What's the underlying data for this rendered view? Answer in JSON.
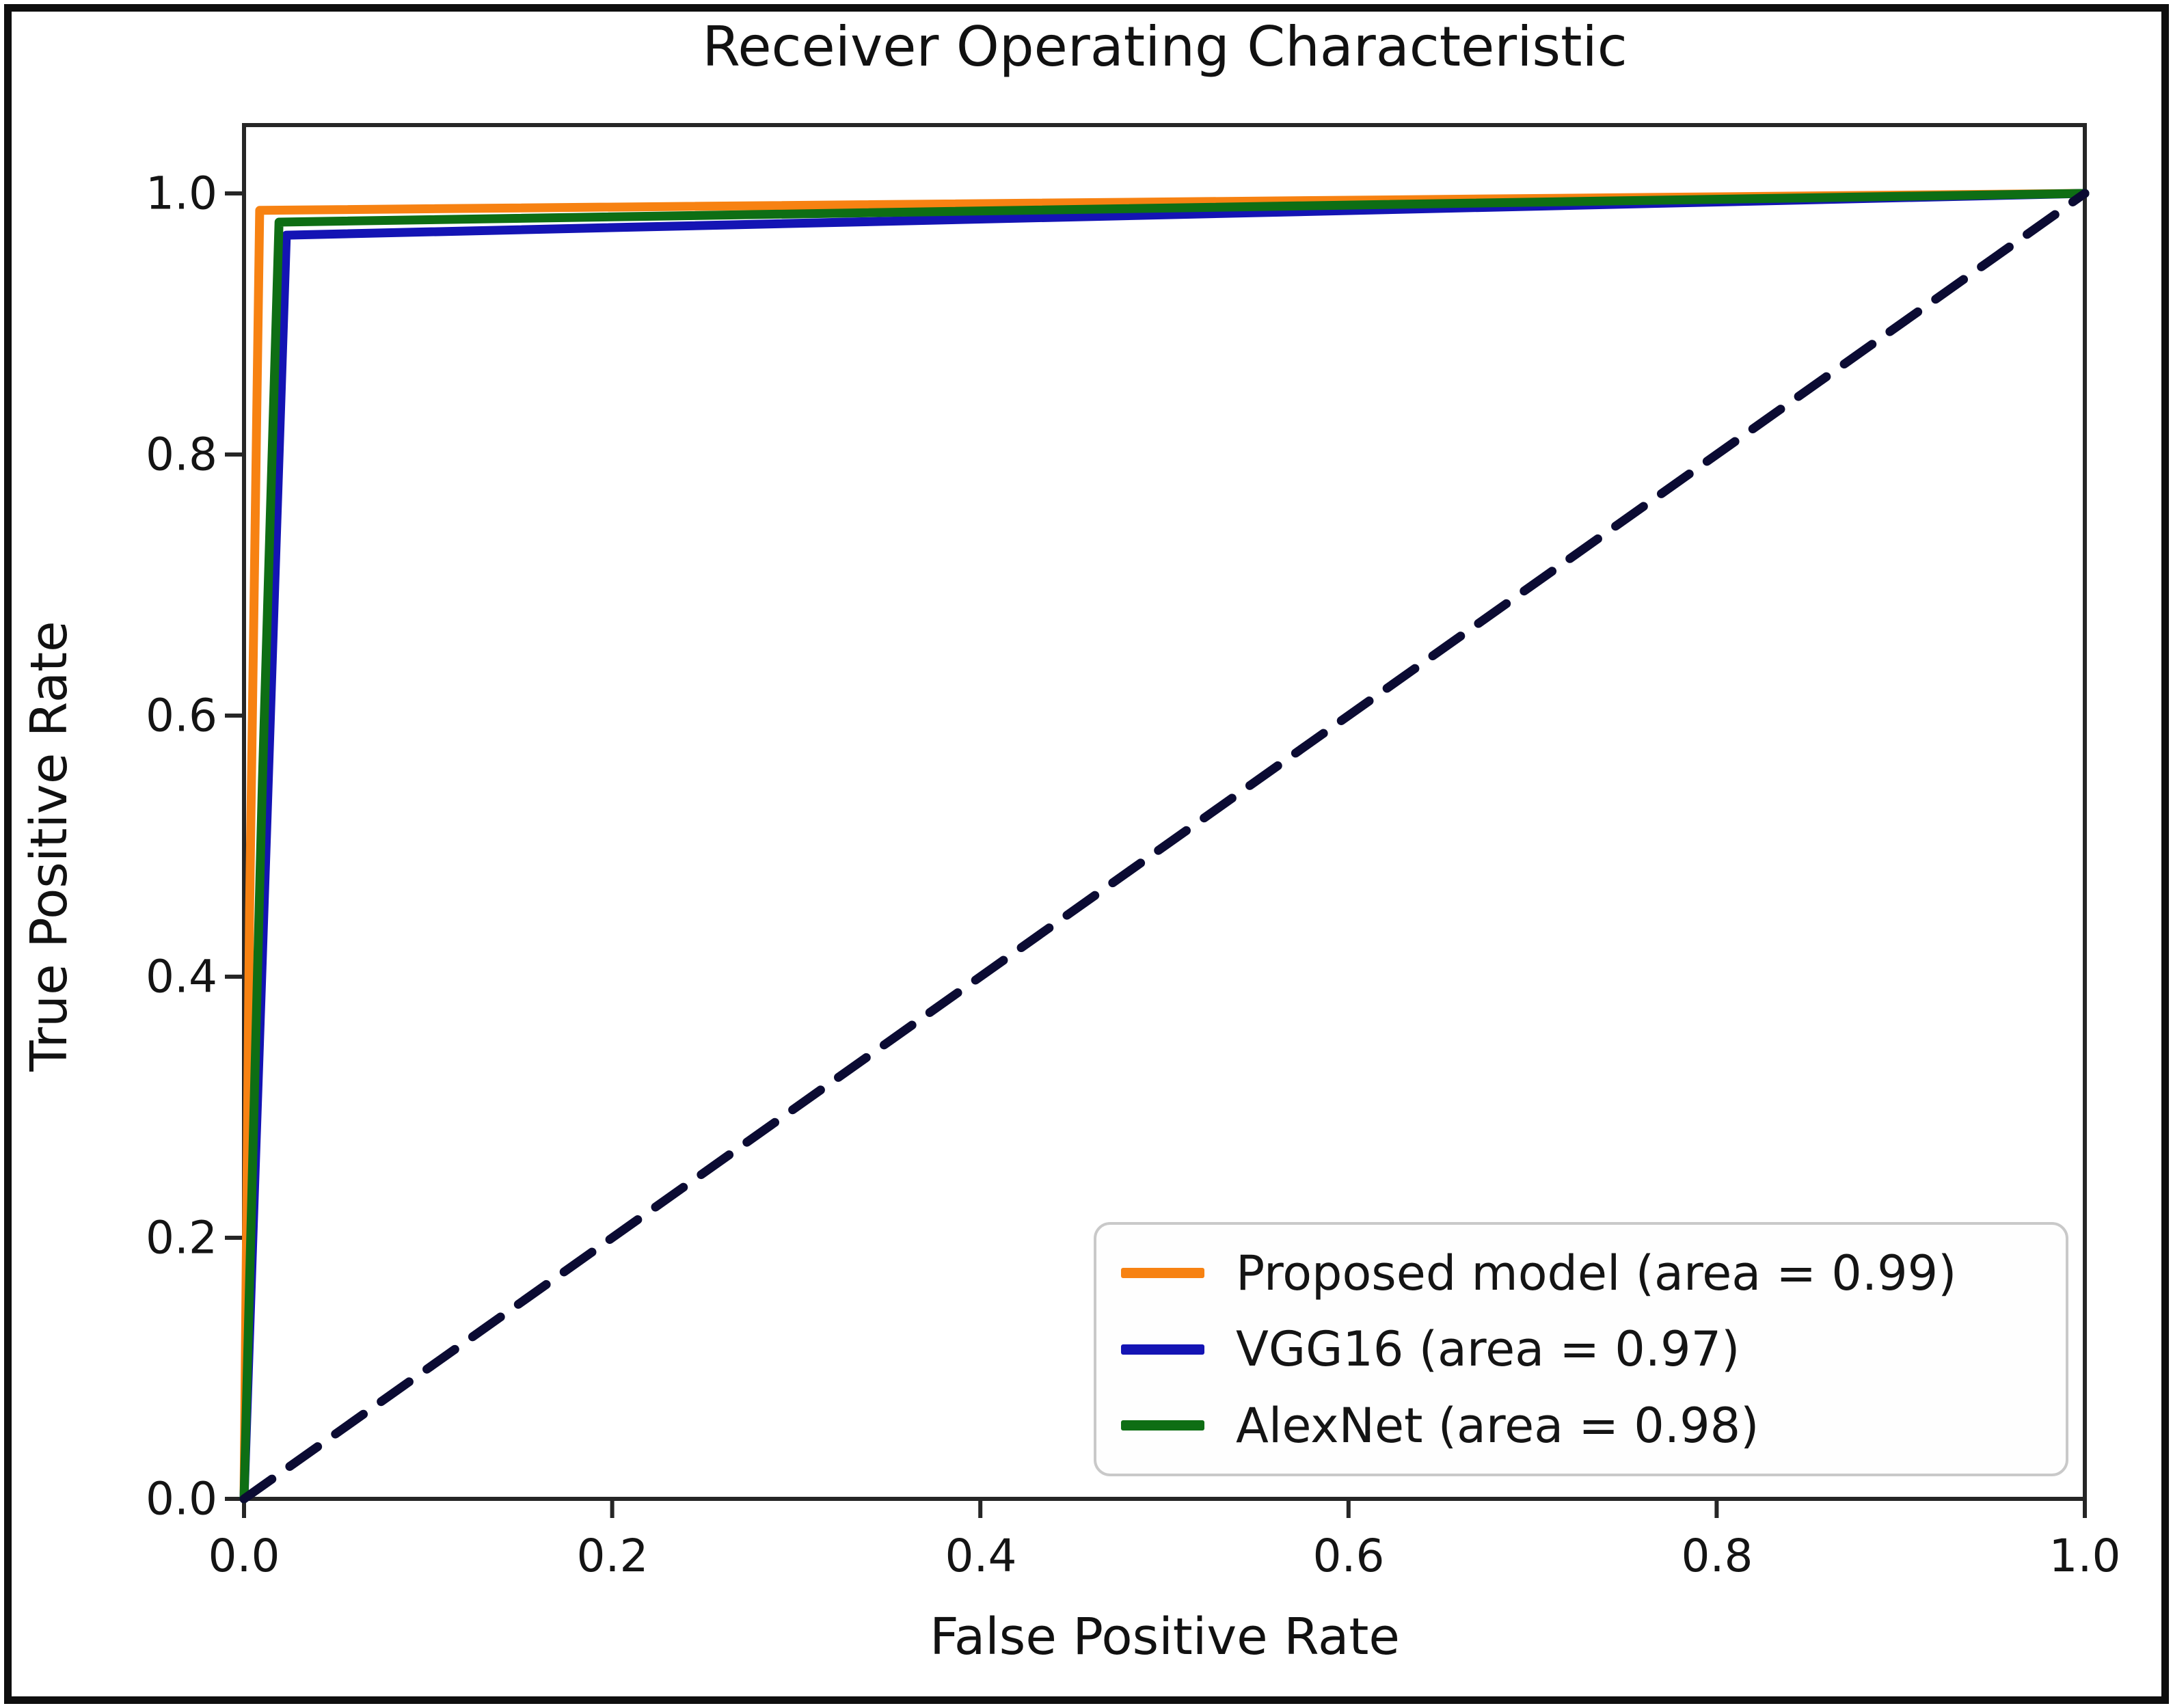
{
  "figure": {
    "title": "Receiver Operating Characteristic",
    "x_axis": {
      "label": "False Positive Rate",
      "ticks": [
        "0.0",
        "0.2",
        "0.4",
        "0.6",
        "0.8",
        "1.0"
      ]
    },
    "y_axis": {
      "label": "True Positive Rate",
      "ticks": [
        "0.0",
        "0.2",
        "0.4",
        "0.6",
        "0.8",
        "1.0"
      ]
    }
  },
  "legend": {
    "position": "lower right",
    "items": [
      {
        "label": "Proposed model (area = 0.99)",
        "color": "#f78212"
      },
      {
        "label": "VGG16 (area = 0.97)",
        "color": "#1414b4"
      },
      {
        "label": "AlexNet (area = 0.98)",
        "color": "#0e6e14"
      }
    ]
  },
  "chart_data": {
    "type": "line",
    "title": "Receiver Operating Characteristic",
    "xlabel": "False Positive Rate",
    "ylabel": "True Positive Rate",
    "xlim": [
      0.0,
      1.0
    ],
    "ylim": [
      0.0,
      1.05
    ],
    "grid": false,
    "legend_position": "lower right",
    "x_ticks": [
      0.0,
      0.2,
      0.4,
      0.6,
      0.8,
      1.0
    ],
    "y_ticks": [
      0.0,
      0.2,
      0.4,
      0.6,
      0.8,
      1.0
    ],
    "axis_color": "#262626",
    "series": [
      {
        "name": "Proposed model",
        "auc": 0.99,
        "color": "#f78212",
        "style": "solid",
        "x": [
          0,
          0.003,
          0.0085,
          1.0
        ],
        "y": [
          0,
          0.45,
          0.987,
          1.0
        ]
      },
      {
        "name": "VGG16",
        "auc": 0.97,
        "color": "#1414b4",
        "style": "solid",
        "x": [
          0,
          0.012,
          0.023,
          1.0
        ],
        "y": [
          0,
          0.5,
          0.968,
          1.0
        ]
      },
      {
        "name": "AlexNet",
        "auc": 0.98,
        "color": "#0e6e14",
        "style": "solid",
        "x": [
          0,
          0.01,
          0.019,
          1.0
        ],
        "y": [
          0,
          0.55,
          0.978,
          1.0
        ]
      },
      {
        "name": "Chance diagonal",
        "color": "#0b0b33",
        "style": "dashed",
        "x": [
          0,
          1.0
        ],
        "y": [
          0,
          1.0
        ]
      }
    ]
  }
}
